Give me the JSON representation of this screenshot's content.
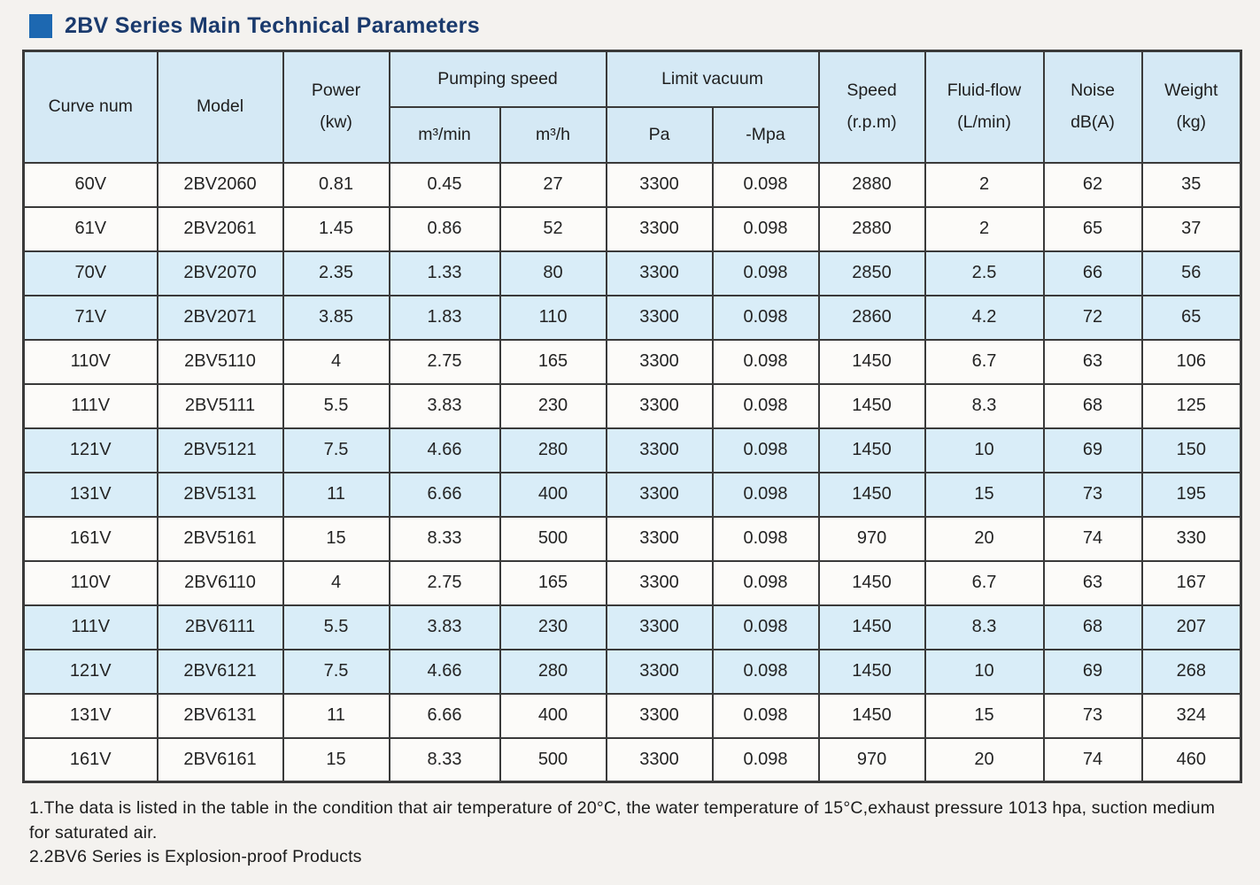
{
  "title": "2BV Series Main Technical Parameters",
  "colors": {
    "accent_blue": "#1d68b1",
    "title_navy": "#1a3a6d",
    "header_bg": "#d5e9f5",
    "stripe_bg": "#d9edf8",
    "border": "#3a3a3a",
    "page_bg": "#f4f2ef"
  },
  "table": {
    "headers": {
      "curve_num": "Curve num",
      "model": "Model",
      "power_l1": "Power",
      "power_l2": "(kw)",
      "pumping_speed": "Pumping speed",
      "m3min": "m³/min",
      "m3h": "m³/h",
      "limit_vacuum": "Limit vacuum",
      "pa": "Pa",
      "mpa": "-Mpa",
      "speed_l1": "Speed",
      "speed_l2": "(r.p.m)",
      "fluid_l1": "Fluid-flow",
      "fluid_l2": "(L/min)",
      "noise_l1": "Noise",
      "noise_l2": "dB(A)",
      "weight_l1": "Weight",
      "weight_l2": "(kg)"
    },
    "rows": [
      [
        "60V",
        "2BV2060",
        "0.81",
        "0.45",
        "27",
        "3300",
        "0.098",
        "2880",
        "2",
        "62",
        "35"
      ],
      [
        "61V",
        "2BV2061",
        "1.45",
        "0.86",
        "52",
        "3300",
        "0.098",
        "2880",
        "2",
        "65",
        "37"
      ],
      [
        "70V",
        "2BV2070",
        "2.35",
        "1.33",
        "80",
        "3300",
        "0.098",
        "2850",
        "2.5",
        "66",
        "56"
      ],
      [
        "71V",
        "2BV2071",
        "3.85",
        "1.83",
        "110",
        "3300",
        "0.098",
        "2860",
        "4.2",
        "72",
        "65"
      ],
      [
        "110V",
        "2BV5110",
        "4",
        "2.75",
        "165",
        "3300",
        "0.098",
        "1450",
        "6.7",
        "63",
        "106"
      ],
      [
        "111V",
        "2BV5111",
        "5.5",
        "3.83",
        "230",
        "3300",
        "0.098",
        "1450",
        "8.3",
        "68",
        "125"
      ],
      [
        "121V",
        "2BV5121",
        "7.5",
        "4.66",
        "280",
        "3300",
        "0.098",
        "1450",
        "10",
        "69",
        "150"
      ],
      [
        "131V",
        "2BV5131",
        "11",
        "6.66",
        "400",
        "3300",
        "0.098",
        "1450",
        "15",
        "73",
        "195"
      ],
      [
        "161V",
        "2BV5161",
        "15",
        "8.33",
        "500",
        "3300",
        "0.098",
        "970",
        "20",
        "74",
        "330"
      ],
      [
        "110V",
        "2BV6110",
        "4",
        "2.75",
        "165",
        "3300",
        "0.098",
        "1450",
        "6.7",
        "63",
        "167"
      ],
      [
        "111V",
        "2BV6111",
        "5.5",
        "3.83",
        "230",
        "3300",
        "0.098",
        "1450",
        "8.3",
        "68",
        "207"
      ],
      [
        "121V",
        "2BV6121",
        "7.5",
        "4.66",
        "280",
        "3300",
        "0.098",
        "1450",
        "10",
        "69",
        "268"
      ],
      [
        "131V",
        "2BV6131",
        "11",
        "6.66",
        "400",
        "3300",
        "0.098",
        "1450",
        "15",
        "73",
        "324"
      ],
      [
        "161V",
        "2BV6161",
        "15",
        "8.33",
        "500",
        "3300",
        "0.098",
        "970",
        "20",
        "74",
        "460"
      ]
    ]
  },
  "notes": [
    "1.The data is listed in the table in the condition that air temperature of 20°C, the water temperature of 15°C,exhaust pressure 1013 hpa, suction medium for saturated air.",
    "2.2BV6 Series is Explosion-proof Products"
  ]
}
